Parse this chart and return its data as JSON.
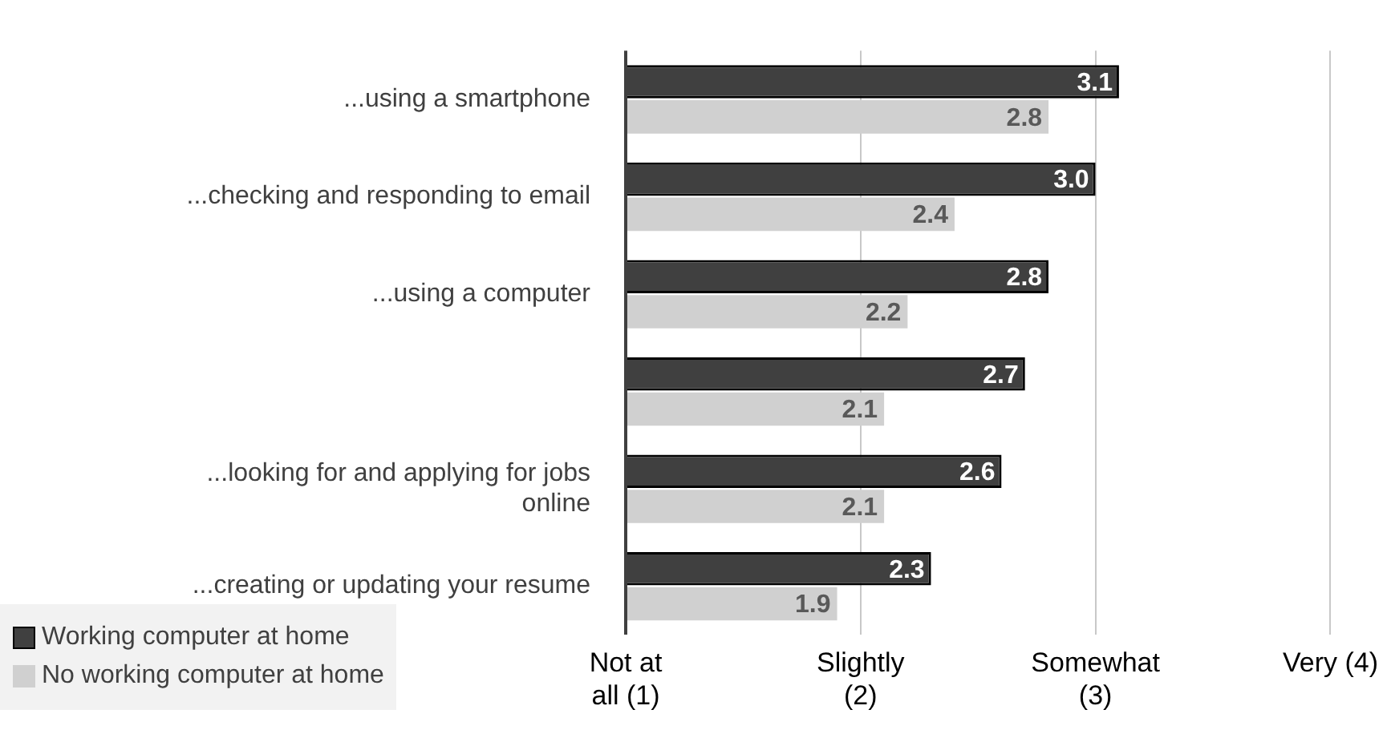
{
  "chart_data": {
    "type": "bar",
    "orientation": "horizontal",
    "categories": [
      "...using a smartphone",
      "...checking and responding to email",
      "...using a computer",
      null,
      "...looking for and applying for jobs online",
      "...creating or updating your resume"
    ],
    "series": [
      {
        "name": "Working computer at home",
        "color": "#404040",
        "values": [
          3.1,
          3.0,
          2.8,
          2.7,
          2.6,
          2.3
        ],
        "value_labels": [
          "3.1",
          "3.0",
          "2.8",
          "2.7",
          "2.6",
          "2.3"
        ]
      },
      {
        "name": "No working computer at home",
        "color": "#d0d0d0",
        "values": [
          2.8,
          2.4,
          2.2,
          2.1,
          2.1,
          1.9
        ],
        "value_labels": [
          "2.8",
          "2.4",
          "2.2",
          "2.1",
          "2.1",
          "1.9"
        ]
      }
    ],
    "xlim": [
      1,
      4
    ],
    "xticks": [
      {
        "value": 1,
        "label": "Not at all (1)"
      },
      {
        "value": 2,
        "label": "Slightly (2)"
      },
      {
        "value": 3,
        "label": "Somewhat (3)"
      },
      {
        "value": 4,
        "label": "Very (4)"
      }
    ],
    "grid": "x",
    "legend": "bottom left"
  }
}
